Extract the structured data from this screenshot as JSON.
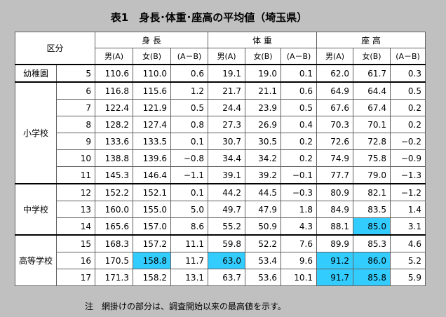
{
  "title": "表1　身長･体重･座高の平均値（埼玉県）",
  "headers": {
    "category": "区分",
    "height": "身 長",
    "weight": "体 重",
    "sitting": "座 高",
    "male": "男(A)",
    "female": "女(B)",
    "diff": "(A－B)"
  },
  "groups": [
    {
      "name": "幼稚園",
      "rows": [
        {
          "age": "5",
          "v": [
            "110.6",
            "110.0",
            "0.6",
            "19.1",
            "19.0",
            "0.1",
            "62.0",
            "61.7",
            "0.3"
          ]
        }
      ]
    },
    {
      "name": "小学校",
      "rows": [
        {
          "age": "6",
          "v": [
            "116.8",
            "115.6",
            "1.2",
            "21.7",
            "21.1",
            "0.6",
            "64.9",
            "64.4",
            "0.5"
          ]
        },
        {
          "age": "7",
          "v": [
            "122.4",
            "121.9",
            "0.5",
            "24.4",
            "23.9",
            "0.5",
            "67.6",
            "67.4",
            "0.2"
          ]
        },
        {
          "age": "8",
          "v": [
            "128.2",
            "127.4",
            "0.8",
            "27.3",
            "26.9",
            "0.4",
            "70.3",
            "70.1",
            "0.2"
          ]
        },
        {
          "age": "9",
          "v": [
            "133.6",
            "133.5",
            "0.1",
            "30.7",
            "30.5",
            "0.2",
            "72.6",
            "72.8",
            "−0.2"
          ]
        },
        {
          "age": "10",
          "v": [
            "138.8",
            "139.6",
            "−0.8",
            "34.4",
            "34.2",
            "0.2",
            "74.9",
            "75.8",
            "−0.9"
          ]
        },
        {
          "age": "11",
          "v": [
            "145.3",
            "146.4",
            "−1.1",
            "39.1",
            "39.2",
            "−0.1",
            "77.7",
            "79.0",
            "−1.3"
          ]
        }
      ]
    },
    {
      "name": "中学校",
      "rows": [
        {
          "age": "12",
          "v": [
            "152.2",
            "152.1",
            "0.1",
            "44.2",
            "44.5",
            "−0.3",
            "80.9",
            "82.1",
            "−1.2"
          ]
        },
        {
          "age": "13",
          "v": [
            "160.0",
            "155.0",
            "5.0",
            "49.7",
            "47.9",
            "1.8",
            "84.9",
            "83.5",
            "1.4"
          ]
        },
        {
          "age": "14",
          "v": [
            "165.6",
            "157.0",
            "8.6",
            "55.2",
            "50.9",
            "4.3",
            "88.1",
            "85.0",
            "3.1"
          ]
        }
      ]
    },
    {
      "name": "高等学校",
      "rows": [
        {
          "age": "15",
          "v": [
            "168.3",
            "157.2",
            "11.1",
            "59.8",
            "52.2",
            "7.6",
            "89.9",
            "85.3",
            "4.6"
          ]
        },
        {
          "age": "16",
          "v": [
            "170.5",
            "158.8",
            "11.7",
            "63.0",
            "53.4",
            "9.6",
            "91.2",
            "86.0",
            "5.2"
          ]
        },
        {
          "age": "17",
          "v": [
            "171.3",
            "158.2",
            "13.1",
            "63.7",
            "53.6",
            "10.1",
            "91.7",
            "85.8",
            "5.9"
          ]
        }
      ]
    }
  ],
  "highlighted": [
    "g2r2c7",
    "g3r1c1",
    "g3r1c3",
    "g3r1c6",
    "g3r1c7",
    "g3r2c6",
    "g3r2c7"
  ],
  "highlight_color": "#33ccff",
  "note": "注　網掛けの部分は、調査開始以来の最高値を示す。"
}
